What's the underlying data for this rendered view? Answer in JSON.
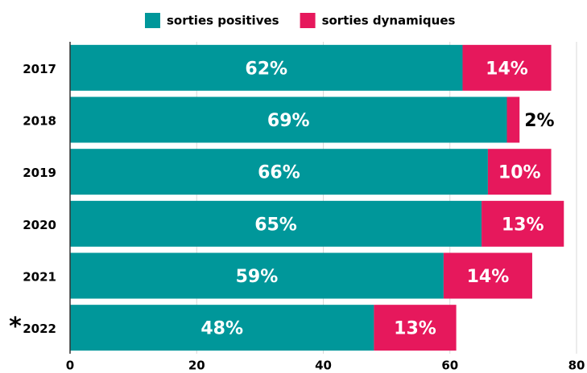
{
  "chart_data": {
    "type": "stacked-barh",
    "categories": [
      "2017",
      "2018",
      "2019",
      "2020",
      "2021",
      "2022"
    ],
    "series": [
      {
        "name": "sorties positives",
        "color": "#00979a",
        "values": [
          62,
          69,
          66,
          65,
          59,
          48
        ],
        "value_labels": [
          "62%",
          "69%",
          "66%",
          "65%",
          "59%",
          "48%"
        ]
      },
      {
        "name": "sorties dynamiques",
        "color": "#e6185c",
        "values": [
          14,
          2,
          10,
          13,
          14,
          13
        ],
        "value_labels": [
          "14%",
          "2%",
          "10%",
          "13%",
          "14%",
          "13%"
        ]
      }
    ],
    "xlim": [
      0,
      80
    ],
    "xticks": [
      0,
      20,
      40,
      60,
      80
    ],
    "grid": true,
    "legend": "top",
    "annotations": [
      {
        "text": "*",
        "category": 5
      }
    ]
  }
}
